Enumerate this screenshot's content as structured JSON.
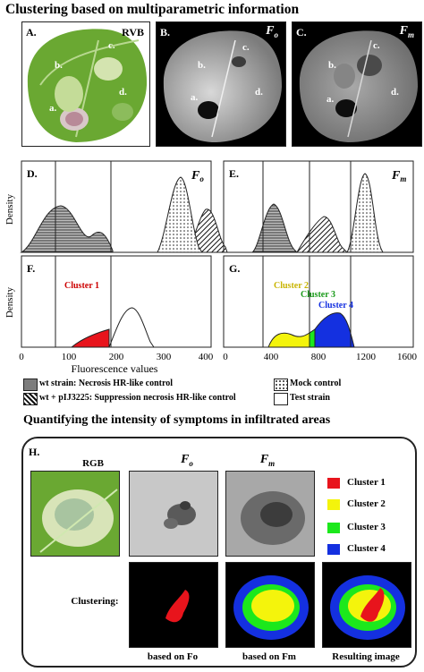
{
  "titles": {
    "top": "Clustering based on multiparametric information",
    "bottom": "Quantifying the intensity of symptoms in infiltrated areas"
  },
  "top_panels": {
    "a": {
      "letter": "A.",
      "label": "RVB"
    },
    "b": {
      "letter": "B.",
      "label_main": "F",
      "label_sub": "o"
    },
    "c": {
      "letter": "C.",
      "label_main": "F",
      "label_sub": "m"
    },
    "leaf_tags": [
      "a.",
      "b.",
      "c.",
      "d."
    ]
  },
  "plots": {
    "d": {
      "letter": "D.",
      "label_main": "F",
      "label_sub": "o"
    },
    "e": {
      "letter": "E.",
      "label_main": "F",
      "label_sub": "m"
    },
    "f": {
      "letter": "F.",
      "cluster": "Cluster 1"
    },
    "g": {
      "letter": "G.",
      "clusters": [
        "Cluster 2",
        "Cluster 3",
        "Cluster 4"
      ]
    },
    "ylabel": "Density",
    "xlabel": "Fluorescence values",
    "left_ticks": [
      "0",
      "100",
      "200",
      "300",
      "400"
    ],
    "right_ticks": [
      "0",
      "400",
      "800",
      "1200",
      "1600"
    ]
  },
  "legend": [
    {
      "text": "wt strain: Necrosis HR-like control",
      "pattern": "hlines"
    },
    {
      "text": "wt + pIJ3225: Suppression necrosis HR-like control",
      "pattern": "diag"
    },
    {
      "text": "Mock control",
      "pattern": "dots"
    },
    {
      "text": "Test strain",
      "pattern": "white"
    }
  ],
  "panel_h": {
    "letter": "H.",
    "columns": {
      "rgb": "RGB",
      "fo_main": "F",
      "fo_sub": "o",
      "fm_main": "F",
      "fm_sub": "m"
    },
    "clusters": [
      {
        "name": "Cluster 1",
        "color": "#e8141c"
      },
      {
        "name": "Cluster 2",
        "color": "#f4f40c"
      },
      {
        "name": "Cluster 3",
        "color": "#1ce81c"
      },
      {
        "name": "Cluster 4",
        "color": "#1430e0"
      }
    ],
    "clustering_label": "Clustering:",
    "captions": [
      "based on Fo",
      "based on Fm",
      "Resulting image"
    ]
  },
  "colors": {
    "cluster1": "#e8141c",
    "cluster2": "#f4f40c",
    "cluster3": "#1ce81c",
    "cluster4": "#1430e0"
  }
}
